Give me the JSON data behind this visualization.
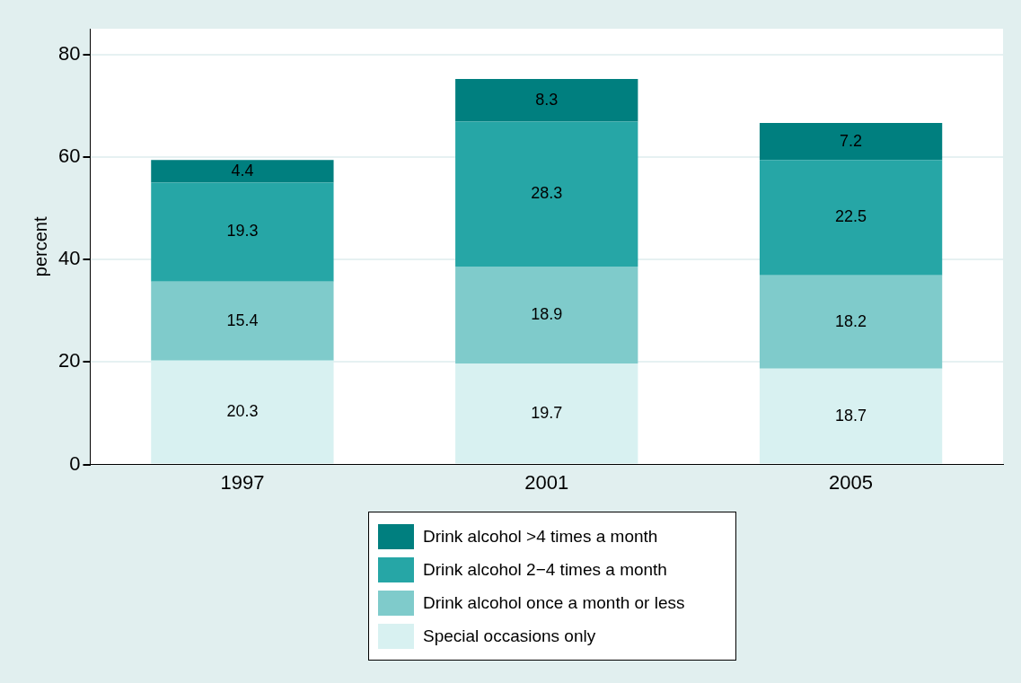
{
  "chart_data": {
    "type": "bar",
    "ylabel": "percent",
    "categories": [
      "1997",
      "2001",
      "2005"
    ],
    "stacked": true,
    "series": [
      {
        "name": "Special occasions only",
        "color": "#d8f1f1",
        "values": [
          20.3,
          19.7,
          18.7
        ]
      },
      {
        "name": "Drink alcohol once a month or less",
        "color": "#7fcbcb",
        "values": [
          15.4,
          18.9,
          18.2
        ]
      },
      {
        "name": "Drink alcohol 2−4 times a month",
        "color": "#26a6a6",
        "values": [
          19.3,
          28.3,
          22.5
        ]
      },
      {
        "name": "Drink alcohol >4 times a month",
        "color": "#007f7f",
        "values": [
          4.4,
          8.3,
          7.2
        ]
      }
    ],
    "ylim": [
      0,
      85
    ],
    "yticks": [
      0,
      20,
      40,
      60,
      80
    ],
    "grid": "y",
    "legend": "bottom",
    "data_labels": true
  }
}
